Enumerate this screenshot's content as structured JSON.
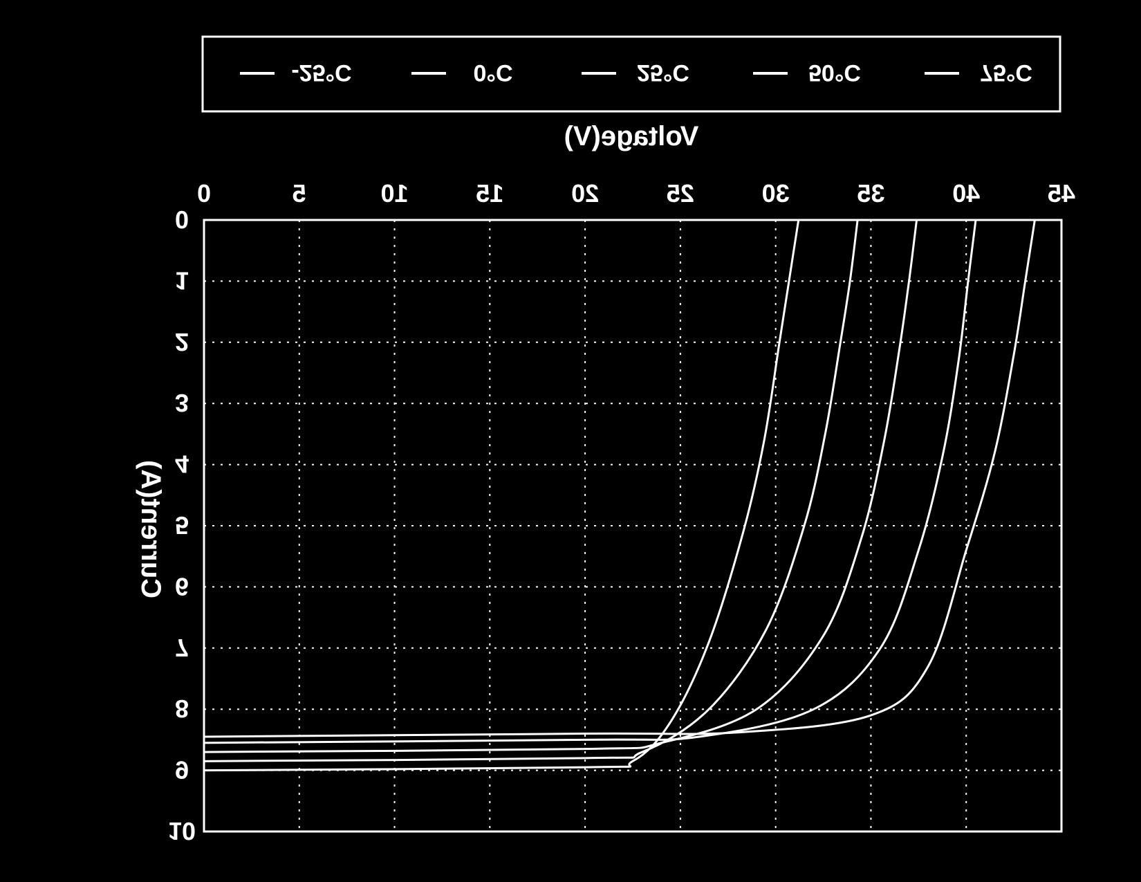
{
  "chart_data": {
    "type": "line",
    "title": "",
    "xlabel": "Voltage(V)",
    "ylabel": "Current(A)",
    "xlim": [
      0,
      45
    ],
    "ylim": [
      0,
      10
    ],
    "x_ticks": [
      "0",
      "5",
      "10",
      "15",
      "20",
      "25",
      "30",
      "35",
      "40",
      "45"
    ],
    "y_ticks": [
      "0",
      "1",
      "2",
      "3",
      "4",
      "5",
      "6",
      "7",
      "8",
      "9",
      "10"
    ],
    "orientation": "mirrored horizontally; x axis on top, y axis increasing downward",
    "grid": true,
    "legend_position": "top",
    "series": [
      {
        "name": "-25°C",
        "isc": 8.45,
        "voc": 43.6,
        "points": [
          [
            0,
            8.45
          ],
          [
            20,
            8.4
          ],
          [
            28,
            8.38
          ],
          [
            35,
            8.1
          ],
          [
            38,
            7.3
          ],
          [
            40,
            5.4
          ],
          [
            41.5,
            3.8
          ],
          [
            42.5,
            2.2
          ],
          [
            43.1,
            1.0
          ],
          [
            43.6,
            0
          ]
        ]
      },
      {
        "name": "0°C",
        "isc": 8.55,
        "voc": 40.5,
        "points": [
          [
            0,
            8.55
          ],
          [
            20,
            8.5
          ],
          [
            26,
            8.45
          ],
          [
            32,
            8.0
          ],
          [
            35.5,
            7.0
          ],
          [
            37.5,
            5.4
          ],
          [
            38.8,
            3.8
          ],
          [
            39.6,
            2.3
          ],
          [
            40.1,
            1.0
          ],
          [
            40.5,
            0
          ]
        ]
      },
      {
        "name": "25°C",
        "isc": 8.7,
        "voc": 37.4,
        "points": [
          [
            0,
            8.7
          ],
          [
            20,
            8.65
          ],
          [
            24,
            8.55
          ],
          [
            29,
            8.0
          ],
          [
            32.5,
            6.8
          ],
          [
            34.5,
            5.2
          ],
          [
            35.7,
            3.6
          ],
          [
            36.5,
            2.1
          ],
          [
            37.0,
            1.0
          ],
          [
            37.4,
            0
          ]
        ]
      },
      {
        "name": "50°C",
        "isc": 8.85,
        "voc": 34.3,
        "points": [
          [
            0,
            8.85
          ],
          [
            20,
            8.8
          ],
          [
            23,
            8.7
          ],
          [
            26.5,
            8.0
          ],
          [
            29.5,
            6.7
          ],
          [
            31.5,
            5.0
          ],
          [
            32.6,
            3.5
          ],
          [
            33.4,
            2.0
          ],
          [
            33.9,
            1.0
          ],
          [
            34.3,
            0
          ]
        ]
      },
      {
        "name": "75°C",
        "isc": 9.0,
        "voc": 31.2,
        "points": [
          [
            0,
            9.0
          ],
          [
            20,
            8.95
          ],
          [
            22.5,
            8.85
          ],
          [
            24.5,
            8.2
          ],
          [
            26.5,
            6.9
          ],
          [
            28.3,
            5.1
          ],
          [
            29.4,
            3.6
          ],
          [
            30.2,
            2.0
          ],
          [
            30.8,
            0.8
          ],
          [
            31.2,
            0
          ]
        ]
      }
    ]
  }
}
